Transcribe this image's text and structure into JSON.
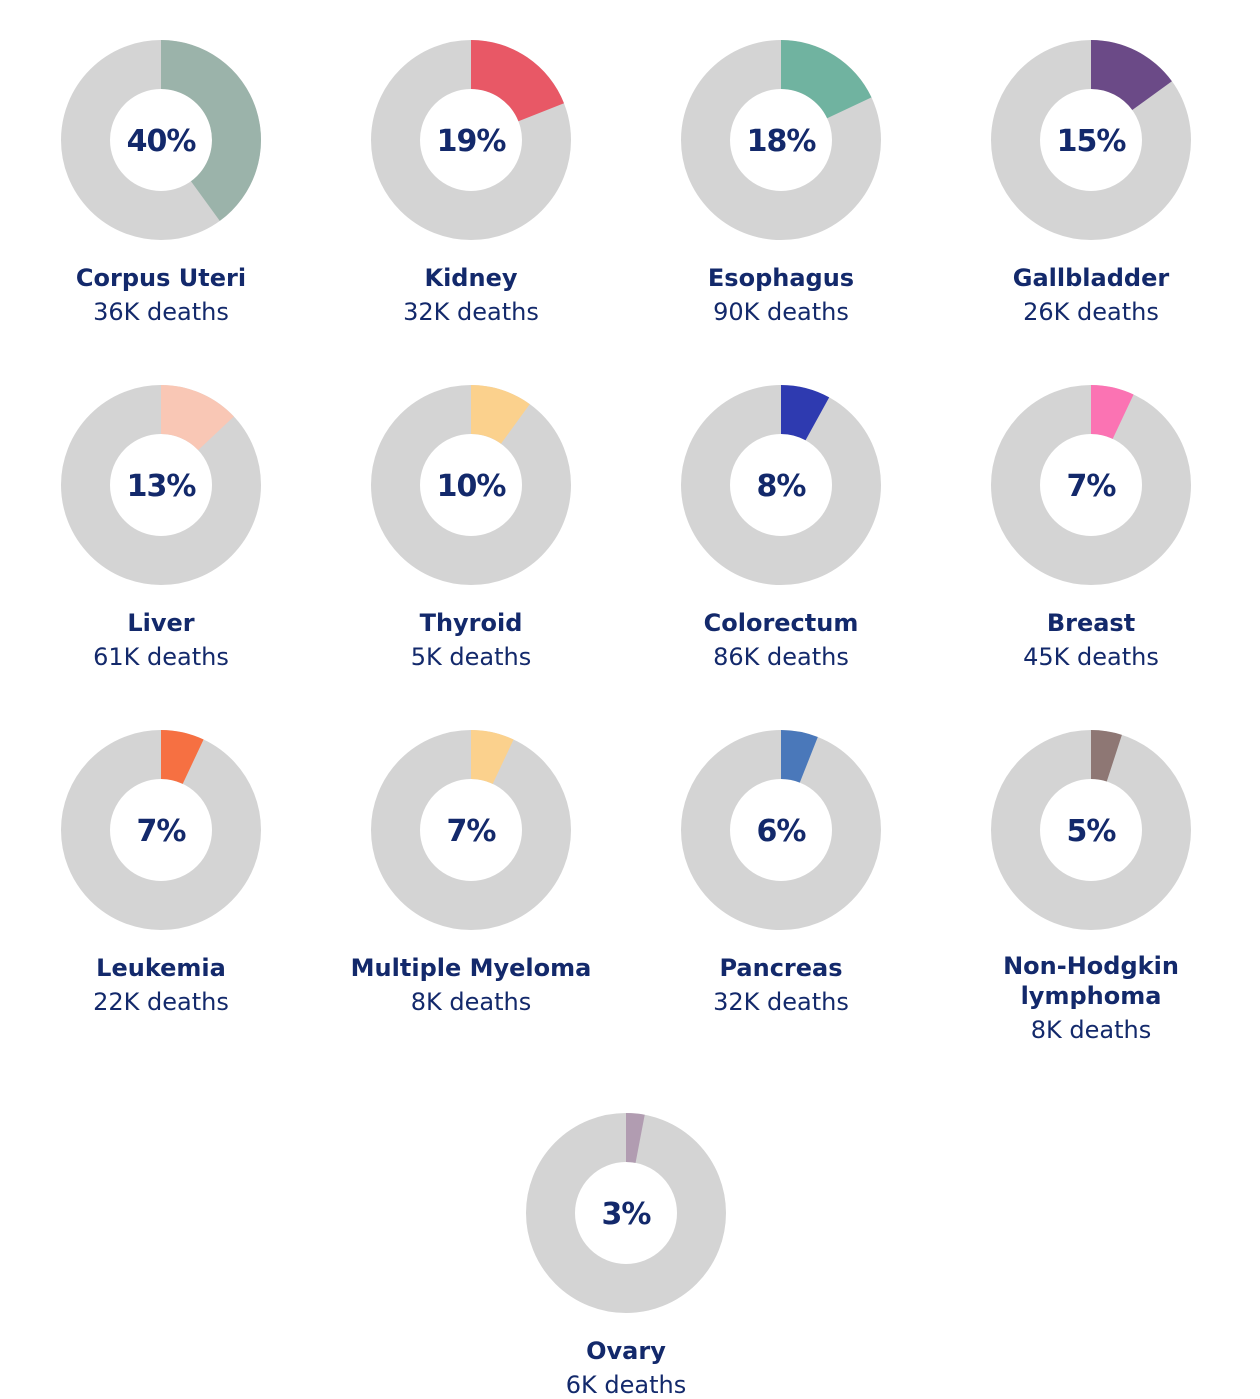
{
  "chart_data": [
    {
      "type": "pie",
      "name": "Corpus Uteri",
      "deaths": "36K deaths",
      "value": 40,
      "label": "40%",
      "color": "#9bb3aa",
      "background_color": "#d4d4d4"
    },
    {
      "type": "pie",
      "name": "Kidney",
      "deaths": "32K deaths",
      "value": 19,
      "label": "19%",
      "color": "#e85866",
      "background_color": "#d4d4d4"
    },
    {
      "type": "pie",
      "name": "Esophagus",
      "deaths": "90K deaths",
      "value": 18,
      "label": "18%",
      "color": "#70b3a0",
      "background_color": "#d4d4d4"
    },
    {
      "type": "pie",
      "name": "Gallbladder",
      "deaths": "26K deaths",
      "value": 15,
      "label": "15%",
      "color": "#6b4a87",
      "background_color": "#d4d4d4"
    },
    {
      "type": "pie",
      "name": "Liver",
      "deaths": "61K deaths",
      "value": 13,
      "label": "13%",
      "color": "#f9c7b5",
      "background_color": "#d4d4d4"
    },
    {
      "type": "pie",
      "name": "Thyroid",
      "deaths": "5K deaths",
      "value": 10,
      "label": "10%",
      "color": "#fbd18d",
      "background_color": "#d4d4d4"
    },
    {
      "type": "pie",
      "name": "Colorectum",
      "deaths": "86K deaths",
      "value": 8,
      "label": "8%",
      "color": "#2e3ab0",
      "background_color": "#d4d4d4"
    },
    {
      "type": "pie",
      "name": "Breast",
      "deaths": "45K deaths",
      "value": 7,
      "label": "7%",
      "color": "#fb73b3",
      "background_color": "#d4d4d4"
    },
    {
      "type": "pie",
      "name": "Leukemia",
      "deaths": "22K deaths",
      "value": 7,
      "label": "7%",
      "color": "#f67042",
      "background_color": "#d4d4d4"
    },
    {
      "type": "pie",
      "name": "Multiple Myeloma",
      "deaths": "8K deaths",
      "value": 7,
      "label": "7%",
      "color": "#fbd18d",
      "background_color": "#d4d4d4"
    },
    {
      "type": "pie",
      "name": "Pancreas",
      "deaths": "32K deaths",
      "value": 6,
      "label": "6%",
      "color": "#4a78ba",
      "background_color": "#d4d4d4"
    },
    {
      "type": "pie",
      "name": "Non-Hodgkin lymphoma",
      "deaths": "8K deaths",
      "value": 5,
      "label": "5%",
      "color": "#8e7774",
      "background_color": "#d4d4d4"
    },
    {
      "type": "pie",
      "name": "Ovary",
      "deaths": "6K deaths",
      "value": 3,
      "label": "3%",
      "color": "#b19cb1",
      "background_color": "#d4d4d4"
    }
  ]
}
